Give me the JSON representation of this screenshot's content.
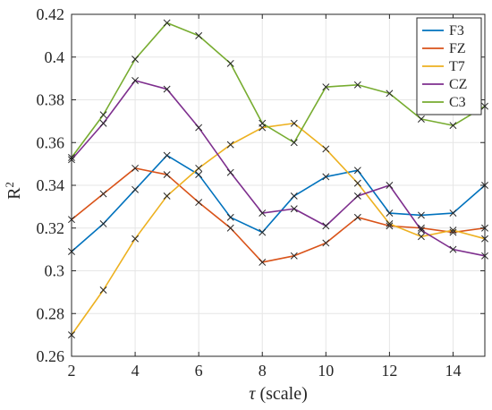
{
  "chart_data": {
    "type": "line",
    "x": [
      2,
      3,
      4,
      5,
      6,
      7,
      8,
      9,
      10,
      11,
      12,
      13,
      14,
      15
    ],
    "xlabel_symbol": "τ",
    "xlabel_text": " (scale)",
    "ylabel_base": "R",
    "ylabel_sup": "2",
    "xlim": [
      2,
      15
    ],
    "ylim": [
      0.26,
      0.42
    ],
    "xticks": [
      2,
      4,
      6,
      8,
      10,
      12,
      14
    ],
    "yticks": [
      "0.26",
      "0.28",
      "0.3",
      "0.32",
      "0.34",
      "0.36",
      "0.38",
      "0.4",
      "0.42"
    ],
    "grid": true,
    "legend_position": "top-right",
    "marker": "x",
    "marker_color": "#262626",
    "series": [
      {
        "name": "F3",
        "color": "#0072BD",
        "values": [
          0.309,
          0.322,
          0.338,
          0.354,
          0.345,
          0.325,
          0.318,
          0.335,
          0.344,
          0.347,
          0.327,
          0.326,
          0.327,
          0.34
        ]
      },
      {
        "name": "FZ",
        "color": "#D95319",
        "values": [
          0.324,
          0.336,
          0.348,
          0.345,
          0.332,
          0.32,
          0.304,
          0.307,
          0.313,
          0.325,
          0.321,
          0.32,
          0.318,
          0.32
        ]
      },
      {
        "name": "T7",
        "color": "#EDB120",
        "values": [
          0.27,
          0.291,
          0.315,
          0.335,
          0.348,
          0.359,
          0.367,
          0.369,
          0.357,
          0.341,
          0.322,
          0.316,
          0.319,
          0.315
        ]
      },
      {
        "name": "CZ",
        "color": "#7E2F8E",
        "values": [
          0.352,
          0.369,
          0.389,
          0.385,
          0.367,
          0.346,
          0.327,
          0.329,
          0.321,
          0.335,
          0.34,
          0.319,
          0.31,
          0.307
        ]
      },
      {
        "name": "C3",
        "color": "#77AC30",
        "values": [
          0.353,
          0.373,
          0.399,
          0.416,
          0.41,
          0.397,
          0.369,
          0.36,
          0.386,
          0.387,
          0.383,
          0.371,
          0.368,
          0.377
        ]
      }
    ]
  }
}
